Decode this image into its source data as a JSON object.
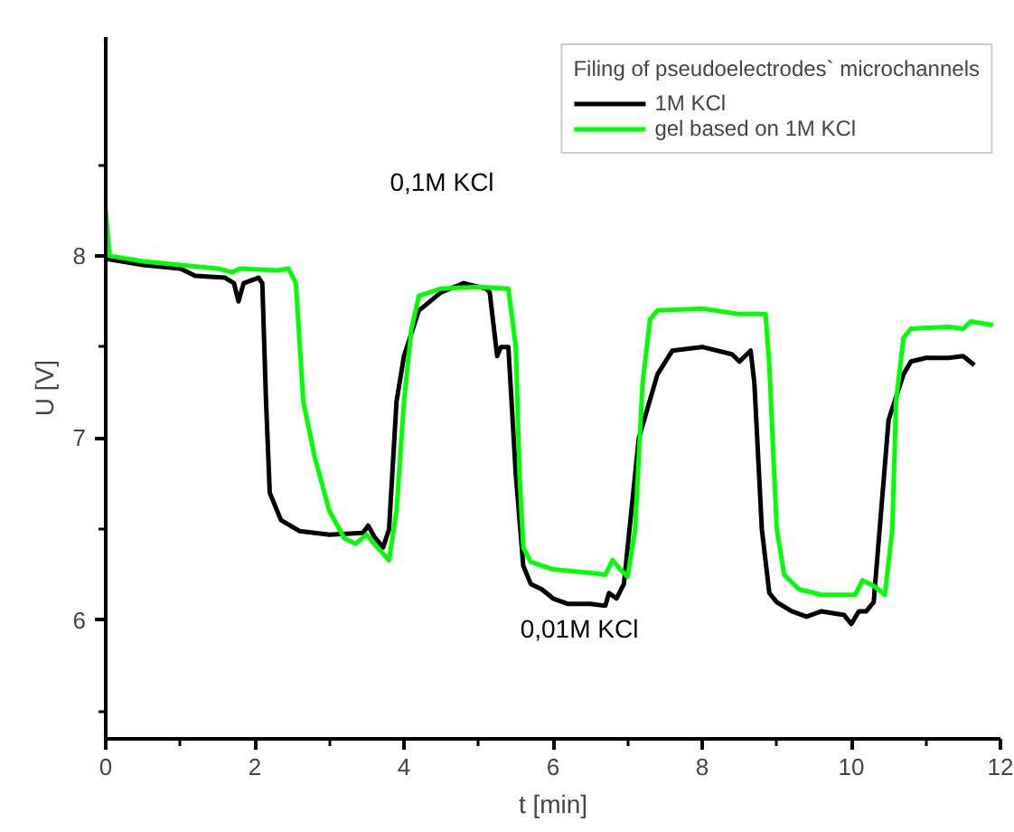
{
  "chart_data": {
    "type": "line",
    "xlabel": "t [min]",
    "ylabel": "U [V]",
    "legend_title": "Filing of pseudoelectrodes` microchannels",
    "legend": "top right",
    "grid": false,
    "line_style": "solid",
    "marker": "none",
    "xlim": [
      0,
      12
    ],
    "ylim": [
      5.35,
      9.2
    ],
    "xticks": [
      0,
      2,
      4,
      6,
      8,
      10,
      12
    ],
    "yticks": [
      6,
      7,
      8
    ],
    "annotations": [
      "0,1M KCl",
      "0,01M KCl"
    ],
    "series": [
      {
        "name": "1M KCl",
        "color": "#000000",
        "x": [
          0,
          0.05,
          0.5,
          1.0,
          1.2,
          1.6,
          1.72,
          1.78,
          1.85,
          2.05,
          2.1,
          2.15,
          2.2,
          2.35,
          2.6,
          3.0,
          3.45,
          3.52,
          3.6,
          3.72,
          3.8,
          3.9,
          4.0,
          4.2,
          4.5,
          4.8,
          5.0,
          5.1,
          5.15,
          5.25,
          5.3,
          5.4,
          5.5,
          5.6,
          5.7,
          5.85,
          6.0,
          6.2,
          6.5,
          6.7,
          6.75,
          6.85,
          6.95,
          7.05,
          7.15,
          7.4,
          7.6,
          8.0,
          8.4,
          8.5,
          8.65,
          8.7,
          8.8,
          8.9,
          9.0,
          9.2,
          9.4,
          9.6,
          9.9,
          10.0,
          10.1,
          10.2,
          10.3,
          10.4,
          10.5,
          10.7,
          10.8,
          11.0,
          11.3,
          11.5,
          11.65
        ],
        "values": [
          8.02,
          7.98,
          7.95,
          7.93,
          7.89,
          7.88,
          7.85,
          7.75,
          7.85,
          7.88,
          7.85,
          7.2,
          6.7,
          6.55,
          6.49,
          6.47,
          6.48,
          6.52,
          6.46,
          6.4,
          6.5,
          7.2,
          7.45,
          7.7,
          7.8,
          7.85,
          7.83,
          7.82,
          7.8,
          7.45,
          7.5,
          7.5,
          6.8,
          6.3,
          6.2,
          6.17,
          6.12,
          6.09,
          6.09,
          6.08,
          6.15,
          6.12,
          6.2,
          6.6,
          7.0,
          7.35,
          7.48,
          7.5,
          7.46,
          7.42,
          7.48,
          7.3,
          6.5,
          6.15,
          6.1,
          6.05,
          6.02,
          6.05,
          6.03,
          5.98,
          6.05,
          6.05,
          6.1,
          6.6,
          7.1,
          7.35,
          7.42,
          7.44,
          7.44,
          7.45,
          7.4
        ]
      },
      {
        "name": "gel based on 1M KCl",
        "color": "#00ff00",
        "x": [
          0,
          0.05,
          0.5,
          1.0,
          1.5,
          1.7,
          1.8,
          2.3,
          2.45,
          2.55,
          2.65,
          2.8,
          3.0,
          3.2,
          3.35,
          3.5,
          3.6,
          3.8,
          3.9,
          4.0,
          4.1,
          4.2,
          4.5,
          5.0,
          5.4,
          5.5,
          5.55,
          5.6,
          5.7,
          6.0,
          6.5,
          6.7,
          6.8,
          6.9,
          7.0,
          7.1,
          7.2,
          7.3,
          7.4,
          8.0,
          8.5,
          8.85,
          8.9,
          9.0,
          9.1,
          9.3,
          9.6,
          10.05,
          10.15,
          10.3,
          10.45,
          10.55,
          10.6,
          10.7,
          10.8,
          11.3,
          11.5,
          11.6,
          11.9
        ],
        "values": [
          8.25,
          8.0,
          7.97,
          7.95,
          7.93,
          7.91,
          7.93,
          7.92,
          7.93,
          7.85,
          7.2,
          6.9,
          6.6,
          6.45,
          6.42,
          6.47,
          6.42,
          6.33,
          6.6,
          7.2,
          7.6,
          7.78,
          7.82,
          7.83,
          7.82,
          7.5,
          6.8,
          6.4,
          6.32,
          6.28,
          6.26,
          6.25,
          6.33,
          6.28,
          6.24,
          6.5,
          7.3,
          7.65,
          7.7,
          7.71,
          7.68,
          7.68,
          7.4,
          6.5,
          6.25,
          6.17,
          6.14,
          6.14,
          6.22,
          6.19,
          6.14,
          6.5,
          7.2,
          7.55,
          7.6,
          7.61,
          7.6,
          7.64,
          7.62
        ]
      }
    ]
  }
}
